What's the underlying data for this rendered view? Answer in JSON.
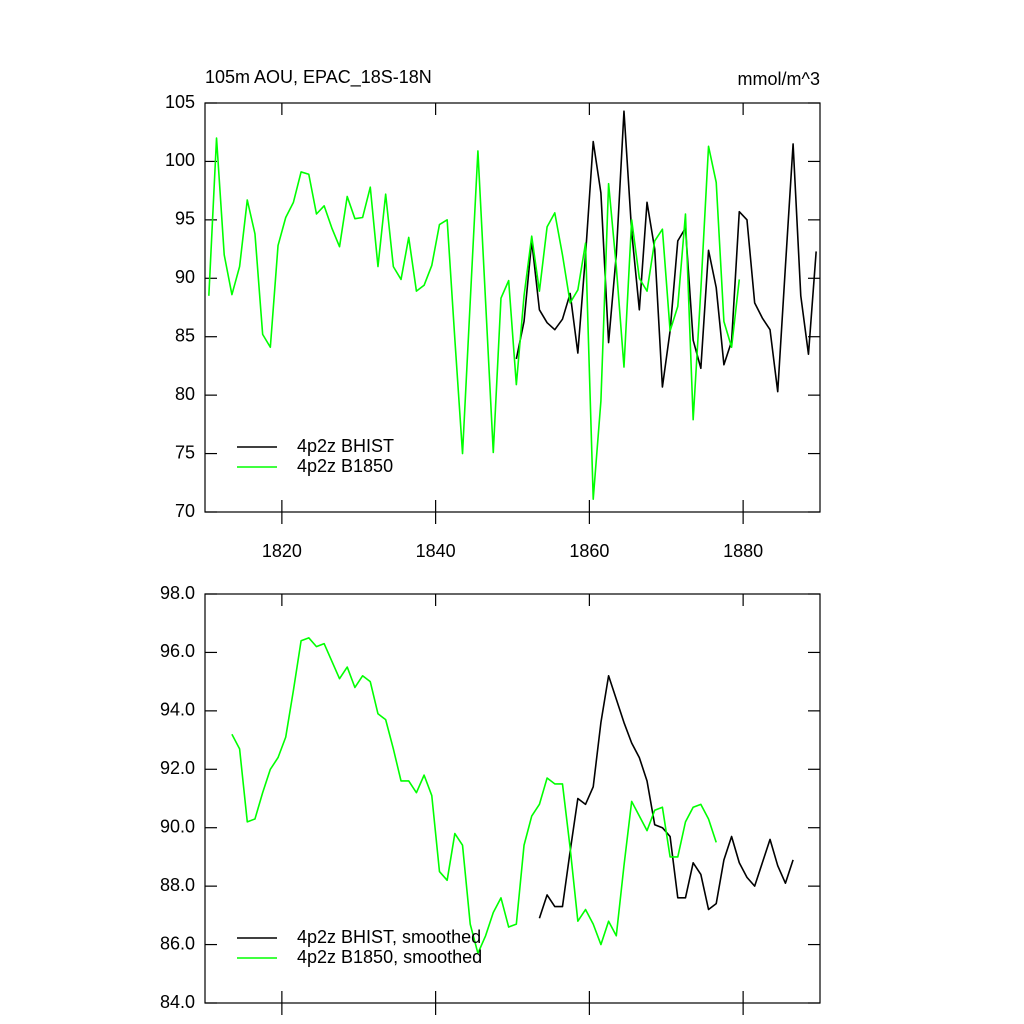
{
  "chart_data": [
    {
      "type": "line",
      "title": "105m AOU, EPAC_18S-18N",
      "units": "mmol/m^3",
      "xlim": [
        1810,
        1890
      ],
      "xticks": [
        1820,
        1840,
        1860,
        1880
      ],
      "ylim": [
        70,
        105
      ],
      "yticks": [
        70,
        75,
        80,
        85,
        90,
        95,
        100,
        105
      ],
      "legend": "lower left",
      "series": [
        {
          "name": "4p2z BHIST",
          "color": "#000000",
          "x": [
            1850.5,
            1851.5,
            1852.5,
            1853.5,
            1854.5,
            1855.5,
            1856.5,
            1857.5,
            1858.5,
            1859.5,
            1860.5,
            1861.5,
            1862.5,
            1863.5,
            1864.5,
            1865.5,
            1866.5,
            1867.5,
            1868.5,
            1869.5,
            1870.5,
            1871.5,
            1872.5,
            1873.5,
            1874.5,
            1875.5,
            1876.5,
            1877.5,
            1878.5,
            1879.5,
            1880.5,
            1881.5,
            1882.5,
            1883.5,
            1884.5,
            1885.5,
            1886.5,
            1887.5,
            1888.5,
            1889.5
          ],
          "values": [
            83.1,
            86.3,
            93.2,
            87.3,
            86.2,
            85.6,
            86.5,
            88.7,
            83.6,
            92,
            101.7,
            97.3,
            84.5,
            92,
            104.3,
            94,
            87.3,
            96.5,
            92.5,
            80.7,
            85.5,
            93.2,
            94.3,
            84.7,
            82.3,
            92.4,
            89.2,
            82.6,
            84.6,
            95.7,
            95,
            87.9,
            86.6,
            85.6,
            80.3,
            91,
            101.5,
            88.5,
            83.5,
            92.3
          ]
        },
        {
          "name": "4p2z B1850",
          "color": "#00ff00",
          "x": [
            1810.5,
            1811.5,
            1812.5,
            1813.5,
            1814.5,
            1815.5,
            1816.5,
            1817.5,
            1818.5,
            1819.5,
            1820.5,
            1821.5,
            1822.5,
            1823.5,
            1824.5,
            1825.5,
            1826.5,
            1827.5,
            1828.5,
            1829.5,
            1830.5,
            1831.5,
            1832.5,
            1833.5,
            1834.5,
            1835.5,
            1836.5,
            1837.5,
            1838.5,
            1839.5,
            1840.5,
            1841.5,
            1842.5,
            1843.5,
            1844.5,
            1845.5,
            1846.5,
            1847.5,
            1848.5,
            1849.5,
            1850.5,
            1851.5,
            1852.5,
            1853.5,
            1854.5,
            1855.5,
            1856.5,
            1857.5,
            1858.5,
            1859.5,
            1860.5,
            1861.5,
            1862.5,
            1863.5,
            1864.5,
            1865.5,
            1866.5,
            1867.5,
            1868.5,
            1869.5,
            1870.5,
            1871.5,
            1872.5,
            1873.5,
            1874.5,
            1875.5,
            1876.5,
            1877.5,
            1878.5,
            1879.5
          ],
          "values": [
            88.5,
            102,
            92,
            88.6,
            91,
            96.7,
            93.8,
            85.2,
            84.1,
            92.8,
            95.2,
            96.5,
            99.1,
            98.9,
            95.5,
            96.2,
            94.3,
            92.7,
            97,
            95.1,
            95.2,
            97.8,
            91,
            97.2,
            91,
            89.9,
            93.5,
            88.9,
            89.4,
            91.1,
            94.6,
            95,
            84.8,
            75,
            88,
            100.9,
            88,
            75.1,
            88.3,
            89.8,
            80.9,
            88.5,
            93.6,
            88.9,
            94.4,
            95.6,
            92,
            87.9,
            89,
            93,
            71.1,
            79.5,
            98.1,
            91,
            82.4,
            95,
            90,
            88.9,
            93.2,
            94.2,
            85.5,
            87.6,
            95.5,
            77.9,
            89,
            101.3,
            98.2,
            86.3,
            84.1,
            89.9
          ]
        }
      ]
    },
    {
      "type": "line",
      "xlim": [
        1810,
        1890
      ],
      "ylim": [
        84,
        98
      ],
      "yticks": [
        {
          "value": 84,
          "label": "84.0"
        },
        {
          "value": 86,
          "label": "86.0"
        },
        {
          "value": 88,
          "label": "88.0"
        },
        {
          "value": 90,
          "label": "90.0"
        },
        {
          "value": 92,
          "label": "92.0"
        },
        {
          "value": 94,
          "label": "94.0"
        },
        {
          "value": 96,
          "label": "96.0"
        },
        {
          "value": 98,
          "label": "98.0"
        }
      ],
      "legend": "lower left",
      "series": [
        {
          "name": "4p2z BHIST, smoothed",
          "color": "#000000",
          "x": [
            1853.5,
            1854.5,
            1855.5,
            1856.5,
            1857.5,
            1858.5,
            1859.5,
            1860.5,
            1861.5,
            1862.5,
            1863.5,
            1864.5,
            1865.5,
            1866.5,
            1867.5,
            1868.5,
            1869.5,
            1870.5,
            1871.5,
            1872.5,
            1873.5,
            1874.5,
            1875.5,
            1876.5,
            1877.5,
            1878.5,
            1879.5,
            1880.5,
            1881.5,
            1882.5,
            1883.5,
            1884.5,
            1885.5,
            1886.5
          ],
          "values": [
            86.9,
            87.7,
            87.3,
            87.3,
            89.2,
            91,
            90.8,
            91.4,
            93.6,
            95.2,
            94.4,
            93.6,
            92.9,
            92.4,
            91.6,
            90.1,
            90,
            89.7,
            87.6,
            87.6,
            88.8,
            88.4,
            87.2,
            87.4,
            88.9,
            89.7,
            88.8,
            88.3,
            88,
            88.8,
            89.6,
            88.7,
            88.1,
            88.9
          ]
        },
        {
          "name": "4p2z B1850, smoothed",
          "color": "#00ff00",
          "x": [
            1813.5,
            1814.5,
            1815.5,
            1816.5,
            1817.5,
            1818.5,
            1819.5,
            1820.5,
            1821.5,
            1822.5,
            1823.5,
            1824.5,
            1825.5,
            1826.5,
            1827.5,
            1828.5,
            1829.5,
            1830.5,
            1831.5,
            1832.5,
            1833.5,
            1834.5,
            1835.5,
            1836.5,
            1837.5,
            1838.5,
            1839.5,
            1840.5,
            1841.5,
            1842.5,
            1843.5,
            1844.5,
            1845.5,
            1846.5,
            1847.5,
            1848.5,
            1849.5,
            1850.5,
            1851.5,
            1852.5,
            1853.5,
            1854.5,
            1855.5,
            1856.5,
            1857.5,
            1858.5,
            1859.5,
            1860.5,
            1861.5,
            1862.5,
            1863.5,
            1864.5,
            1865.5,
            1866.5,
            1867.5,
            1868.5,
            1869.5,
            1870.5,
            1871.5,
            1872.5,
            1873.5,
            1874.5,
            1875.5,
            1876.5
          ],
          "values": [
            93.2,
            92.7,
            90.2,
            90.3,
            91.2,
            92,
            92.4,
            93.1,
            94.7,
            96.4,
            96.5,
            96.2,
            96.3,
            95.7,
            95.1,
            95.5,
            94.8,
            95.2,
            95,
            93.9,
            93.7,
            92.7,
            91.6,
            91.6,
            91.2,
            91.8,
            91.1,
            88.5,
            88.2,
            89.8,
            89.4,
            86.7,
            85.7,
            86.3,
            87.1,
            87.6,
            86.6,
            86.7,
            89.4,
            90.4,
            90.8,
            91.7,
            91.5,
            91.5,
            89.3,
            86.8,
            87.2,
            86.7,
            86,
            86.8,
            86.3,
            88.7,
            90.9,
            90.4,
            89.9,
            90.6,
            90.7,
            89,
            89,
            90.2,
            90.7,
            90.8,
            90.3,
            89.5
          ]
        }
      ]
    }
  ]
}
